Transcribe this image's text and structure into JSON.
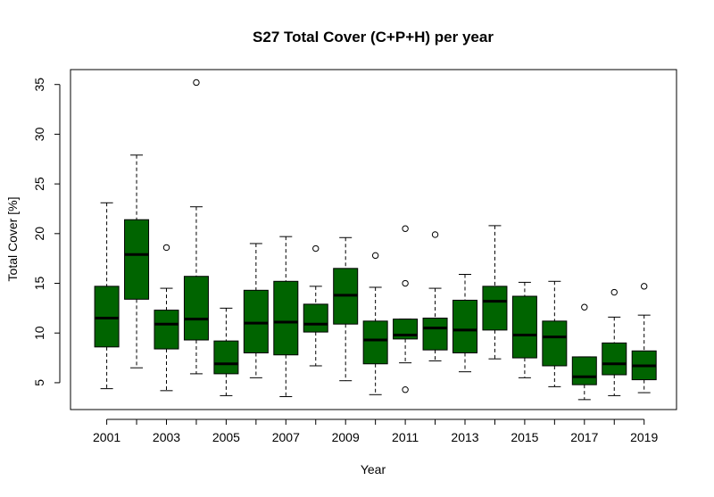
{
  "chart_data": {
    "type": "boxplot",
    "title": "S27 Total Cover (C+P+H) per year",
    "xlabel": "Year",
    "ylabel": "Total Cover [%]",
    "ylim": [
      2.3,
      36.5
    ],
    "yticks": [
      5,
      10,
      15,
      20,
      25,
      30,
      35
    ],
    "x_tick_labels_shown": [
      "2001",
      "2003",
      "2005",
      "2007",
      "2009",
      "2011",
      "2013",
      "2015",
      "2017",
      "2019"
    ],
    "box_color": "#006400",
    "grid": false,
    "categories": [
      "2001",
      "2002",
      "2003",
      "2004",
      "2005",
      "2006",
      "2007",
      "2008",
      "2009",
      "2010",
      "2011",
      "2012",
      "2013",
      "2014",
      "2015",
      "2016",
      "2017",
      "2018",
      "2019"
    ],
    "boxes": [
      {
        "year": "2001",
        "min": 4.4,
        "q1": 8.6,
        "median": 11.5,
        "q3": 14.7,
        "max": 23.1,
        "outliers": []
      },
      {
        "year": "2002",
        "min": 6.5,
        "q1": 13.4,
        "median": 17.9,
        "q3": 21.4,
        "max": 27.9,
        "outliers": []
      },
      {
        "year": "2003",
        "min": 4.2,
        "q1": 8.4,
        "median": 10.9,
        "q3": 12.3,
        "max": 14.5,
        "outliers": [
          18.6
        ]
      },
      {
        "year": "2004",
        "min": 5.9,
        "q1": 9.3,
        "median": 11.4,
        "q3": 15.7,
        "max": 22.7,
        "outliers": [
          35.2
        ]
      },
      {
        "year": "2005",
        "min": 3.7,
        "q1": 5.9,
        "median": 6.9,
        "q3": 9.2,
        "max": 12.5,
        "outliers": []
      },
      {
        "year": "2006",
        "min": 5.5,
        "q1": 8.0,
        "median": 11.0,
        "q3": 14.3,
        "max": 19.0,
        "outliers": []
      },
      {
        "year": "2007",
        "min": 3.6,
        "q1": 7.8,
        "median": 11.1,
        "q3": 15.2,
        "max": 19.7,
        "outliers": []
      },
      {
        "year": "2008",
        "min": 6.7,
        "q1": 10.1,
        "median": 10.9,
        "q3": 12.9,
        "max": 14.7,
        "outliers": [
          18.5
        ]
      },
      {
        "year": "2009",
        "min": 5.2,
        "q1": 10.9,
        "median": 13.8,
        "q3": 16.5,
        "max": 19.6,
        "outliers": []
      },
      {
        "year": "2010",
        "min": 3.8,
        "q1": 6.9,
        "median": 9.3,
        "q3": 11.2,
        "max": 14.6,
        "outliers": [
          17.8
        ]
      },
      {
        "year": "2011",
        "min": 7.0,
        "q1": 9.4,
        "median": 9.8,
        "q3": 11.4,
        "max": 11.4,
        "outliers": [
          20.5,
          15.0,
          4.3
        ]
      },
      {
        "year": "2012",
        "min": 7.2,
        "q1": 8.3,
        "median": 10.5,
        "q3": 11.5,
        "max": 14.5,
        "outliers": [
          19.9
        ]
      },
      {
        "year": "2013",
        "min": 6.1,
        "q1": 8.0,
        "median": 10.3,
        "q3": 13.3,
        "max": 15.9,
        "outliers": []
      },
      {
        "year": "2014",
        "min": 7.4,
        "q1": 10.3,
        "median": 13.2,
        "q3": 14.7,
        "max": 20.8,
        "outliers": []
      },
      {
        "year": "2015",
        "min": 5.5,
        "q1": 7.5,
        "median": 9.8,
        "q3": 13.7,
        "max": 15.1,
        "outliers": []
      },
      {
        "year": "2016",
        "min": 4.6,
        "q1": 6.7,
        "median": 9.6,
        "q3": 11.2,
        "max": 15.2,
        "outliers": []
      },
      {
        "year": "2017",
        "min": 3.3,
        "q1": 4.8,
        "median": 5.6,
        "q3": 7.6,
        "max": 7.6,
        "outliers": [
          12.6
        ]
      },
      {
        "year": "2018",
        "min": 3.7,
        "q1": 5.8,
        "median": 6.9,
        "q3": 9.0,
        "max": 11.6,
        "outliers": [
          14.1
        ]
      },
      {
        "year": "2019",
        "min": 4.0,
        "q1": 5.3,
        "median": 6.7,
        "q3": 8.2,
        "max": 11.8,
        "outliers": [
          14.7
        ]
      }
    ]
  }
}
